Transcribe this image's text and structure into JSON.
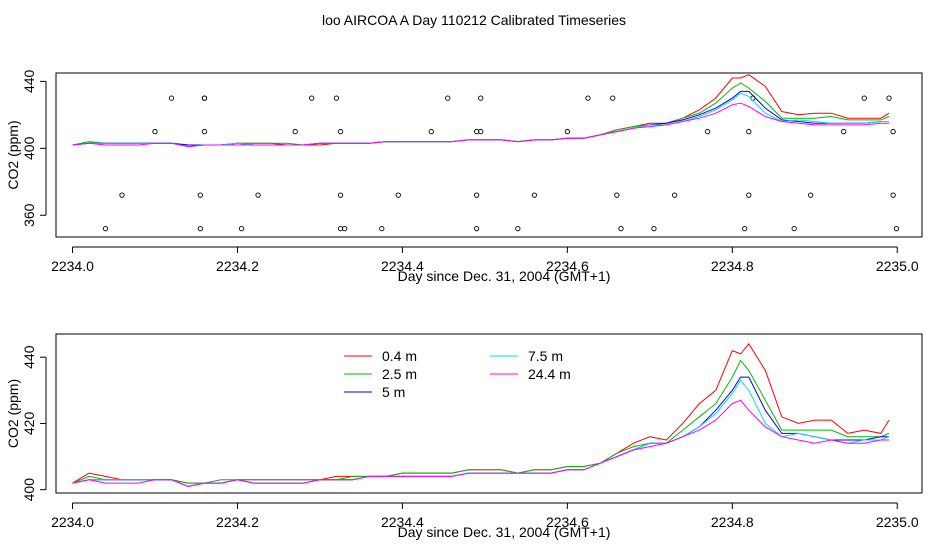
{
  "title": "loo AIRCOA A  Day 110212  Calibrated Timeseries",
  "colors": {
    "0.4 m": "#ff0000",
    "2.5 m": "#00bb00",
    "5 m": "#0000ff",
    "7.5 m": "#00e0e0",
    "24.4 m": "#ff00ff",
    "axis": "#000000"
  },
  "chart_data": [
    {
      "type": "line",
      "xlabel": "Day since Dec. 31, 2004 (GMT+1)",
      "ylabel": "CO2 (ppm)",
      "xlim": [
        2233.98,
        2235.03
      ],
      "ylim": [
        347,
        445
      ],
      "xticks": [
        2234.0,
        2234.2,
        2234.4,
        2234.6,
        2234.8,
        2235.0
      ],
      "xtick_labels": [
        "2234.0",
        "2234.2",
        "2234.4",
        "2234.6",
        "2234.8",
        "2235.0"
      ],
      "yticks": [
        360,
        400,
        440
      ],
      "ytick_labels": [
        "360",
        "400",
        "440"
      ],
      "x": [
        2234.0,
        2234.02,
        2234.04,
        2234.06,
        2234.08,
        2234.1,
        2234.12,
        2234.14,
        2234.16,
        2234.18,
        2234.2,
        2234.22,
        2234.24,
        2234.26,
        2234.28,
        2234.3,
        2234.32,
        2234.34,
        2234.36,
        2234.38,
        2234.4,
        2234.42,
        2234.44,
        2234.46,
        2234.48,
        2234.5,
        2234.52,
        2234.54,
        2234.56,
        2234.58,
        2234.6,
        2234.62,
        2234.64,
        2234.66,
        2234.68,
        2234.7,
        2234.72,
        2234.74,
        2234.76,
        2234.78,
        2234.8,
        2234.81,
        2234.82,
        2234.84,
        2234.86,
        2234.88,
        2234.9,
        2234.92,
        2234.94,
        2234.96,
        2234.98,
        2234.99
      ],
      "series": [
        {
          "name": "0.4 m",
          "values": [
            402,
            403,
            403,
            403,
            403,
            403,
            403,
            402,
            402,
            402,
            403,
            403,
            403,
            402,
            402,
            402,
            403,
            403,
            403,
            404,
            404,
            404,
            404,
            404,
            405,
            405,
            405,
            404,
            405,
            405,
            406,
            406,
            408,
            411,
            413,
            415,
            415,
            418,
            423,
            430,
            442,
            442,
            444,
            437,
            422,
            420,
            421,
            421,
            418,
            418,
            418,
            421
          ]
        },
        {
          "name": "2.5 m",
          "values": [
            402,
            404,
            403,
            403,
            403,
            403,
            403,
            402,
            402,
            402,
            403,
            403,
            403,
            403,
            402,
            403,
            403,
            403,
            403,
            404,
            404,
            404,
            404,
            404,
            405,
            405,
            405,
            404,
            405,
            405,
            406,
            406,
            408,
            411,
            413,
            414,
            415,
            418,
            421,
            427,
            436,
            439,
            436,
            428,
            418,
            418,
            418,
            419,
            417,
            417,
            417,
            419
          ]
        },
        {
          "name": "5 m",
          "values": [
            402,
            403,
            403,
            403,
            403,
            403,
            403,
            402,
            402,
            402,
            403,
            402,
            402,
            402,
            402,
            403,
            403,
            403,
            403,
            404,
            404,
            404,
            404,
            404,
            405,
            405,
            405,
            404,
            405,
            405,
            406,
            406,
            408,
            410,
            412,
            414,
            415,
            417,
            420,
            424,
            430,
            434,
            434,
            424,
            417,
            416,
            415,
            415,
            415,
            415,
            416,
            416
          ]
        },
        {
          "name": "7.5 m",
          "values": [
            402,
            403,
            403,
            403,
            403,
            403,
            403,
            401,
            402,
            402,
            403,
            402,
            402,
            402,
            402,
            403,
            403,
            403,
            403,
            404,
            404,
            404,
            404,
            404,
            405,
            405,
            405,
            404,
            405,
            405,
            406,
            406,
            408,
            410,
            412,
            414,
            414,
            416,
            419,
            423,
            429,
            433,
            431,
            421,
            416,
            417,
            416,
            415,
            415,
            415,
            416,
            416
          ]
        },
        {
          "name": "24.4 m",
          "values": [
            402,
            403,
            402,
            402,
            402,
            403,
            403,
            401,
            402,
            402,
            402,
            402,
            402,
            402,
            402,
            403,
            403,
            403,
            403,
            404,
            404,
            404,
            404,
            404,
            405,
            405,
            405,
            404,
            405,
            405,
            406,
            406,
            408,
            410,
            412,
            413,
            414,
            416,
            418,
            421,
            426,
            427,
            425,
            419,
            416,
            415,
            414,
            414,
            414,
            414,
            415,
            415
          ]
        }
      ],
      "points": {
        "x": [
          2234.04,
          2234.06,
          2234.1,
          2234.12,
          2234.155,
          2234.155,
          2234.16,
          2234.16,
          2234.16,
          2234.205,
          2234.225,
          2234.27,
          2234.29,
          2234.32,
          2234.325,
          2234.325,
          2234.325,
          2234.33,
          2234.375,
          2234.395,
          2234.435,
          2234.455,
          2234.49,
          2234.49,
          2234.49,
          2234.495,
          2234.495,
          2234.54,
          2234.56,
          2234.6,
          2234.625,
          2234.655,
          2234.66,
          2234.665,
          2234.705,
          2234.73,
          2234.77,
          2234.815,
          2234.82,
          2234.82,
          2234.825,
          2234.875,
          2234.895,
          2234.935,
          2234.96,
          2234.99,
          2234.995,
          2234.995,
          2234.999
        ],
        "y": [
          352,
          372,
          410,
          430,
          352,
          372,
          410,
          430,
          430,
          352,
          372,
          410,
          430,
          430,
          410,
          372,
          352,
          352,
          352,
          372,
          410,
          430,
          352,
          372,
          410,
          430,
          410,
          352,
          372,
          410,
          430,
          430,
          372,
          352,
          352,
          372,
          410,
          352,
          372,
          410,
          430,
          352,
          372,
          410,
          430,
          430,
          410,
          372,
          352
        ]
      }
    },
    {
      "type": "line",
      "xlabel": "Day since Dec. 31, 2004 (GMT+1)",
      "ylabel": "CO2 (ppm)",
      "xlim": [
        2233.98,
        2235.03
      ],
      "ylim": [
        399,
        447
      ],
      "xticks": [
        2234.0,
        2234.2,
        2234.4,
        2234.6,
        2234.8,
        2235.0
      ],
      "xtick_labels": [
        "2234.0",
        "2234.2",
        "2234.4",
        "2234.6",
        "2234.8",
        "2235.0"
      ],
      "yticks": [
        400,
        420,
        440
      ],
      "ytick_labels": [
        "400",
        "420",
        "440"
      ],
      "legend_position": "top-left",
      "x": [
        2234.0,
        2234.02,
        2234.04,
        2234.06,
        2234.08,
        2234.1,
        2234.12,
        2234.14,
        2234.16,
        2234.18,
        2234.2,
        2234.22,
        2234.24,
        2234.26,
        2234.28,
        2234.3,
        2234.32,
        2234.34,
        2234.36,
        2234.38,
        2234.4,
        2234.42,
        2234.44,
        2234.46,
        2234.48,
        2234.5,
        2234.52,
        2234.54,
        2234.56,
        2234.58,
        2234.6,
        2234.62,
        2234.64,
        2234.66,
        2234.68,
        2234.7,
        2234.72,
        2234.74,
        2234.76,
        2234.78,
        2234.8,
        2234.81,
        2234.82,
        2234.84,
        2234.86,
        2234.88,
        2234.9,
        2234.92,
        2234.94,
        2234.96,
        2234.98,
        2234.99
      ],
      "series": [
        {
          "name": "0.4 m",
          "values": [
            402,
            405,
            404,
            403,
            403,
            403,
            403,
            402,
            402,
            402,
            403,
            403,
            403,
            403,
            403,
            403,
            404,
            404,
            404,
            404,
            405,
            405,
            405,
            405,
            406,
            406,
            406,
            405,
            406,
            406,
            407,
            407,
            408,
            411,
            414,
            416,
            415,
            420,
            426,
            430,
            442,
            441,
            444,
            436,
            422,
            420,
            421,
            421,
            417,
            418,
            417,
            421
          ]
        },
        {
          "name": "2.5 m",
          "values": [
            402,
            404,
            403,
            403,
            403,
            403,
            403,
            402,
            402,
            403,
            403,
            403,
            403,
            403,
            403,
            403,
            403,
            404,
            404,
            404,
            405,
            405,
            405,
            405,
            406,
            406,
            406,
            405,
            406,
            406,
            407,
            407,
            408,
            411,
            413,
            414,
            414,
            418,
            422,
            426,
            434,
            439,
            436,
            427,
            418,
            418,
            418,
            418,
            416,
            416,
            416,
            417
          ]
        },
        {
          "name": "5 m",
          "values": [
            402,
            403,
            403,
            403,
            403,
            403,
            403,
            401,
            402,
            402,
            403,
            402,
            402,
            402,
            402,
            403,
            403,
            403,
            404,
            404,
            404,
            404,
            404,
            404,
            405,
            405,
            405,
            405,
            405,
            405,
            406,
            406,
            408,
            410,
            412,
            414,
            414,
            416,
            419,
            424,
            430,
            434,
            434,
            424,
            417,
            417,
            416,
            415,
            415,
            415,
            416,
            416
          ]
        },
        {
          "name": "7.5 m",
          "values": [
            402,
            403,
            403,
            403,
            403,
            403,
            403,
            401,
            402,
            402,
            403,
            402,
            402,
            402,
            402,
            403,
            403,
            403,
            404,
            404,
            404,
            404,
            404,
            404,
            405,
            405,
            405,
            405,
            405,
            405,
            406,
            406,
            408,
            410,
            412,
            414,
            414,
            416,
            419,
            423,
            429,
            433,
            430,
            420,
            416,
            417,
            416,
            415,
            414,
            415,
            415,
            416
          ]
        },
        {
          "name": "24.4 m",
          "values": [
            402,
            403,
            402,
            402,
            402,
            403,
            403,
            401,
            402,
            402,
            403,
            402,
            402,
            402,
            402,
            403,
            403,
            403,
            404,
            404,
            404,
            404,
            404,
            404,
            405,
            405,
            405,
            405,
            405,
            405,
            406,
            406,
            408,
            410,
            412,
            413,
            414,
            416,
            418,
            421,
            426,
            427,
            424,
            419,
            416,
            415,
            414,
            415,
            414,
            414,
            415,
            415
          ]
        }
      ]
    }
  ]
}
